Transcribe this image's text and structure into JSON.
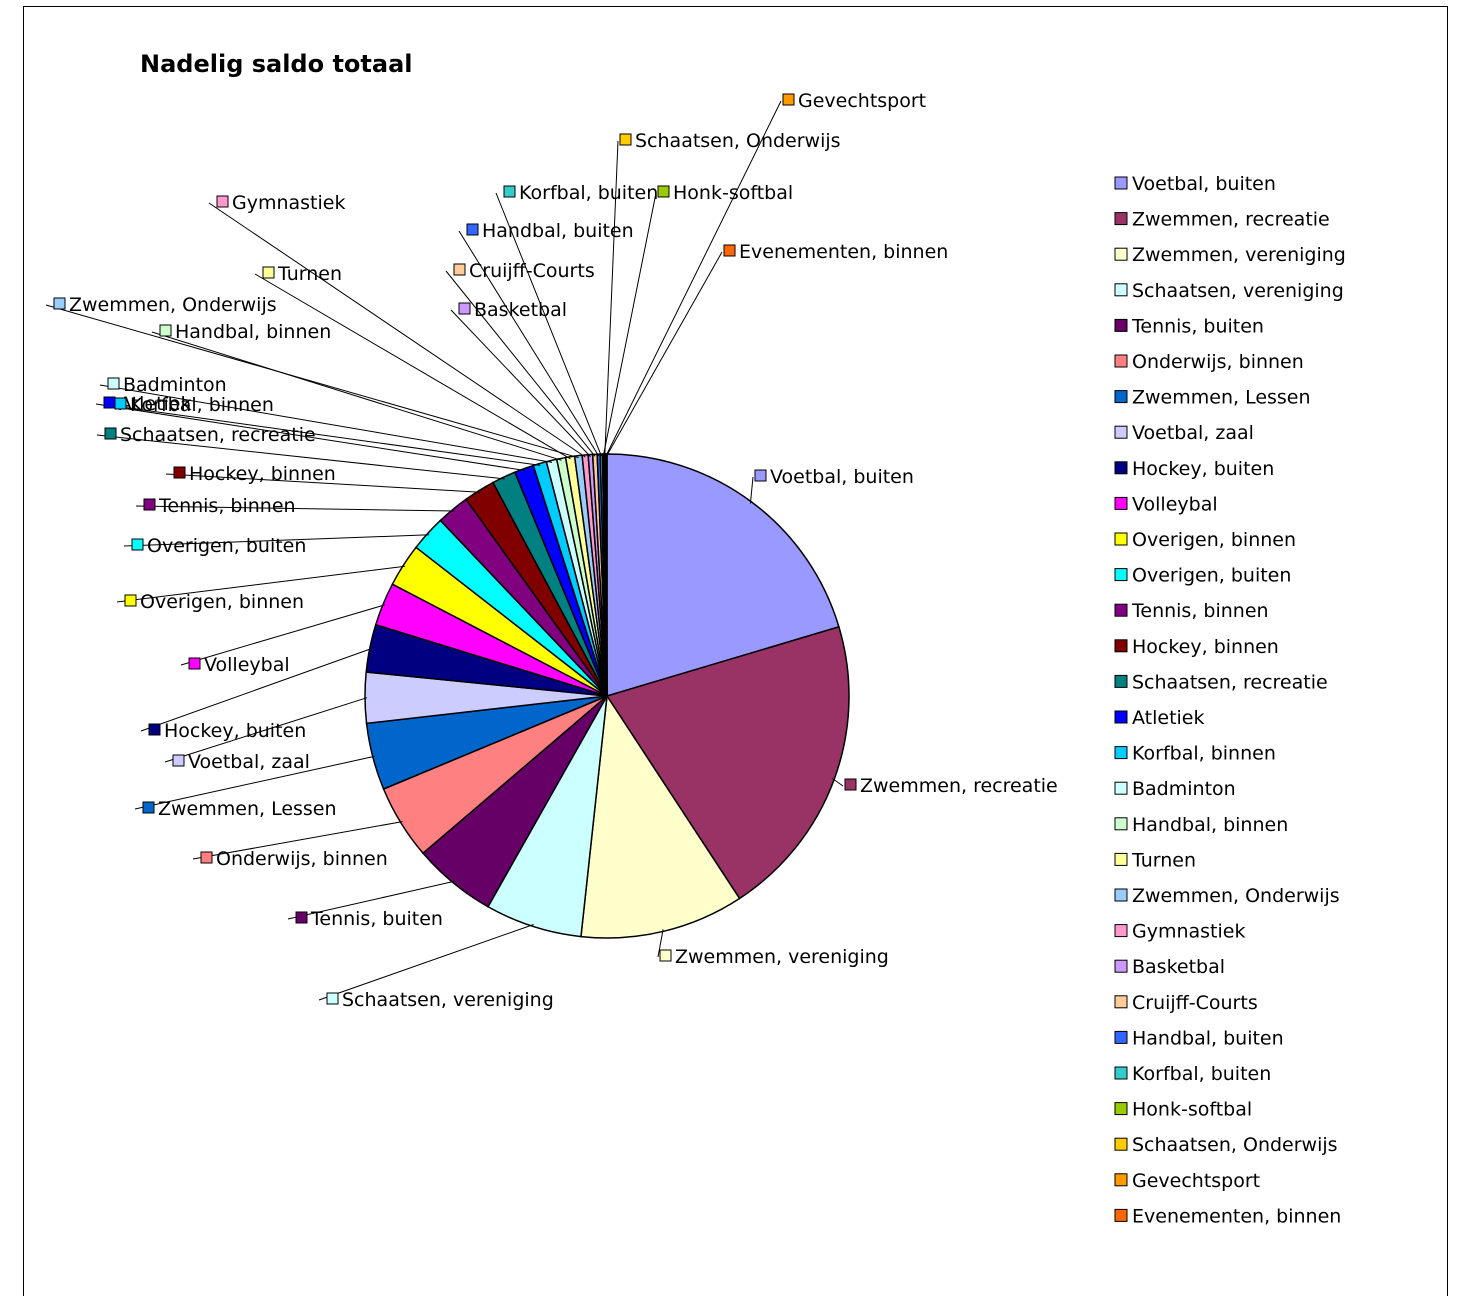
{
  "chart_data": {
    "type": "pie",
    "title": "Nadelig saldo totaal",
    "legend_position": "right",
    "slices": [
      {
        "label": "Voetbal, buiten",
        "value": 20.5,
        "color": "#9999FF"
      },
      {
        "label": "Zwemmen, recreatie",
        "value": 20.5,
        "color": "#993366"
      },
      {
        "label": "Zwemmen, vereniging",
        "value": 11.0,
        "color": "#FFFFCC"
      },
      {
        "label": "Schaatsen, vereniging",
        "value": 6.5,
        "color": "#CCFFFF"
      },
      {
        "label": "Tennis, buiten",
        "value": 5.6,
        "color": "#660066"
      },
      {
        "label": "Onderwijs, binnen",
        "value": 5.0,
        "color": "#FF8080"
      },
      {
        "label": "Zwemmen, Lessen",
        "value": 4.5,
        "color": "#0066CC"
      },
      {
        "label": "Voetbal, zaal",
        "value": 3.4,
        "color": "#CCCCFF"
      },
      {
        "label": "Hockey, buiten",
        "value": 3.2,
        "color": "#000080"
      },
      {
        "label": "Volleybal",
        "value": 2.9,
        "color": "#FF00FF"
      },
      {
        "label": "Overigen, binnen",
        "value": 2.9,
        "color": "#FFFF00"
      },
      {
        "label": "Overigen, buiten",
        "value": 2.4,
        "color": "#00FFFF"
      },
      {
        "label": "Tennis, binnen",
        "value": 2.2,
        "color": "#800080"
      },
      {
        "label": "Hockey, binnen",
        "value": 2.1,
        "color": "#800000"
      },
      {
        "label": "Schaatsen, recreatie",
        "value": 1.6,
        "color": "#008080"
      },
      {
        "label": "Atletiek",
        "value": 1.3,
        "color": "#0000FF"
      },
      {
        "label": "Korfbal, binnen",
        "value": 0.9,
        "color": "#00CCFF"
      },
      {
        "label": "Badminton",
        "value": 0.7,
        "color": "#CCFFFF"
      },
      {
        "label": "Handbal, binnen",
        "value": 0.6,
        "color": "#CCFFCC"
      },
      {
        "label": "Turnen",
        "value": 0.6,
        "color": "#FFFF99"
      },
      {
        "label": "Zwemmen, Onderwijs",
        "value": 0.5,
        "color": "#99CCFF"
      },
      {
        "label": "Gymnastiek",
        "value": 0.4,
        "color": "#FF99CC"
      },
      {
        "label": "Basketbal",
        "value": 0.3,
        "color": "#CC99FF"
      },
      {
        "label": "Cruijff-Courts",
        "value": 0.3,
        "color": "#FFCC99"
      },
      {
        "label": "Handbal, buiten",
        "value": 0.2,
        "color": "#3366FF"
      },
      {
        "label": "Korfbal, buiten",
        "value": 0.15,
        "color": "#33CCCC"
      },
      {
        "label": "Honk-softbal",
        "value": 0.1,
        "color": "#99CC00"
      },
      {
        "label": "Schaatsen, Onderwijs",
        "value": 0.1,
        "color": "#FFCC00"
      },
      {
        "label": "Gevechtsport",
        "value": 0.05,
        "color": "#FF9900"
      },
      {
        "label": "Evenementen, binnen",
        "value": 0.05,
        "color": "#FF6600"
      }
    ]
  }
}
